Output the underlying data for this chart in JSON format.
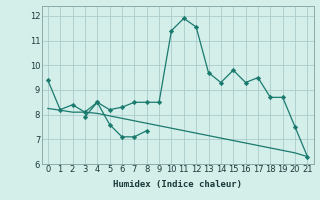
{
  "xlabel": "Humidex (Indice chaleur)",
  "background_color": "#d4eeea",
  "grid_color": "#aacccc",
  "line_color": "#1a7a6e",
  "xlim": [
    -0.5,
    21.5
  ],
  "ylim": [
    6.0,
    12.4
  ],
  "yticks": [
    6,
    7,
    8,
    9,
    10,
    11,
    12
  ],
  "xticks": [
    0,
    1,
    2,
    3,
    4,
    5,
    6,
    7,
    8,
    9,
    10,
    11,
    12,
    13,
    14,
    15,
    16,
    17,
    18,
    19,
    20,
    21
  ],
  "line1_x": [
    0,
    1,
    2,
    3,
    4,
    5,
    6,
    7,
    8,
    9,
    10,
    11,
    12,
    13,
    14,
    15,
    16,
    17,
    18,
    19,
    20,
    21
  ],
  "line1_y": [
    9.4,
    8.2,
    8.4,
    8.1,
    8.5,
    8.2,
    8.3,
    8.5,
    8.5,
    8.5,
    11.4,
    11.9,
    11.55,
    9.7,
    9.3,
    9.8,
    9.3,
    9.5,
    8.7,
    8.7,
    7.5,
    6.3
  ],
  "line2_x": [
    3,
    4,
    5,
    6,
    7,
    8
  ],
  "line2_y": [
    7.9,
    8.5,
    7.6,
    7.1,
    7.1,
    7.35
  ],
  "line3_x": [
    0,
    1,
    2,
    3,
    4,
    5,
    6,
    7,
    8,
    9,
    10,
    11,
    12,
    13,
    14,
    15,
    16,
    17,
    18,
    19,
    20,
    21
  ],
  "line3_y": [
    8.25,
    8.18,
    8.1,
    8.1,
    8.05,
    7.95,
    7.85,
    7.75,
    7.65,
    7.55,
    7.45,
    7.35,
    7.25,
    7.15,
    7.05,
    6.95,
    6.85,
    6.75,
    6.65,
    6.55,
    6.45,
    6.3
  ]
}
